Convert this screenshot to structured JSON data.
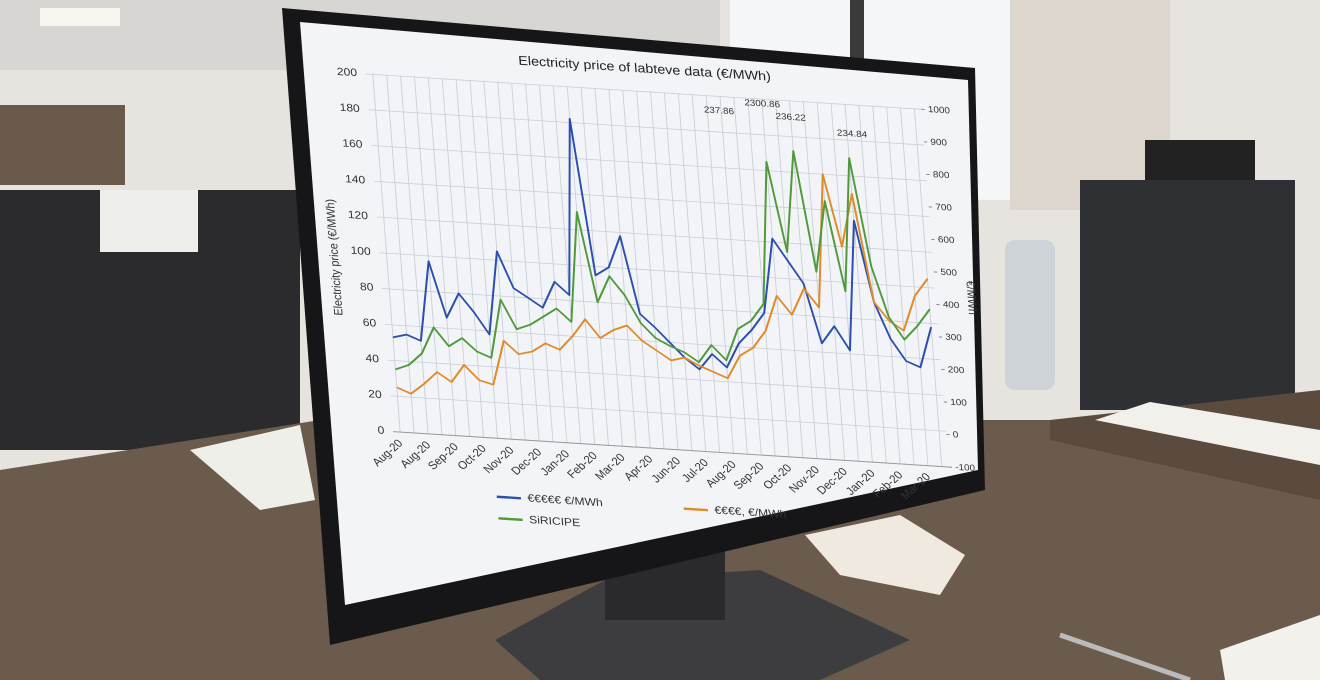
{
  "chart_data": {
    "type": "line",
    "title": "Electricity price of labteve data (€/MWh)",
    "y_label": "Electricity price (€/MWh)",
    "y2_label": "€/MWh",
    "categories": [
      "Aug-20",
      null,
      "Aug-20",
      null,
      "Sep-20",
      null,
      "Oct-20",
      null,
      "Nov-20",
      null,
      "Dec-20",
      null,
      "Jan-20",
      null,
      "Feb-20",
      null,
      "Mar-20",
      null,
      "Apr-20",
      null,
      "Jun-20",
      null,
      "Jul-20",
      null,
      "Aug-20",
      null,
      "Sep-20",
      null,
      "Oct-20",
      null,
      "Nov-20",
      null,
      "Dec-20",
      null,
      "Jan-20",
      null,
      "Feb-20",
      null,
      "Mar-20",
      null
    ],
    "series": [
      {
        "name": "€€€€€ €/MWh",
        "color": "#2b4fb0",
        "values": [
          53,
          55,
          52,
          97,
          66,
          80,
          70,
          58,
          105,
          85,
          80,
          75,
          90,
          83,
          182,
          95,
          100,
          118,
          75,
          68,
          60,
          52,
          46,
          55,
          48,
          62,
          70,
          80,
          122,
          110,
          98,
          65,
          75,
          62,
          135,
          90,
          70,
          58,
          55,
          78
        ]
      },
      {
        "name": "€€€€, €/MWh",
        "color": "#e08a2a",
        "values": [
          25,
          22,
          28,
          35,
          30,
          40,
          32,
          30,
          55,
          48,
          50,
          55,
          52,
          60,
          70,
          60,
          65,
          68,
          60,
          55,
          50,
          52,
          48,
          45,
          42,
          55,
          60,
          70,
          90,
          80,
          95,
          85,
          160,
          120,
          150,
          90,
          80,
          75,
          95,
          105
        ]
      },
      {
        "name": "SiRICIPE",
        "color": "#4f9a3a",
        "values": [
          35,
          38,
          45,
          60,
          50,
          55,
          48,
          45,
          78,
          62,
          65,
          70,
          75,
          68,
          130,
          80,
          95,
          85,
          70,
          62,
          58,
          55,
          50,
          60,
          52,
          70,
          75,
          85,
          165,
          115,
          172,
          105,
          145,
          95,
          170,
          110,
          82,
          70,
          78,
          88
        ]
      }
    ],
    "ylim": [
      0,
      200
    ],
    "yticks": [
      0,
      20,
      40,
      60,
      80,
      100,
      120,
      140,
      160,
      180,
      200
    ],
    "y2lim": [
      -100,
      1000
    ],
    "y2ticks": [
      -100,
      0,
      100,
      200,
      300,
      400,
      500,
      600,
      700,
      800,
      900,
      1000
    ],
    "annotations": [
      "237.86",
      "2300.86",
      "236.22",
      "234.84"
    ],
    "grid": true
  }
}
